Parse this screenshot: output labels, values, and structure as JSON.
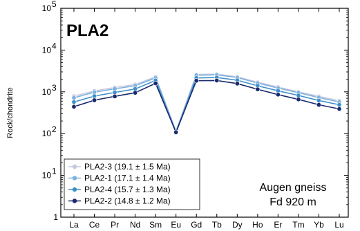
{
  "chart_data": {
    "type": "line",
    "sample_title": "PLA2",
    "ylabel": "Rock/chondrite",
    "yscale": "log",
    "ylim": [
      1,
      100000
    ],
    "y_ticks": [
      {
        "value": 1,
        "base": "1",
        "exp": ""
      },
      {
        "value": 10,
        "base": "10",
        "exp": "1"
      },
      {
        "value": 100,
        "base": "10",
        "exp": "2"
      },
      {
        "value": 1000,
        "base": "10",
        "exp": "3"
      },
      {
        "value": 10000,
        "base": "10",
        "exp": "4"
      },
      {
        "value": 100000,
        "base": "10",
        "exp": "5"
      }
    ],
    "categories": [
      "La",
      "Ce",
      "Pr",
      "Nd",
      "Sm",
      "Eu",
      "Gd",
      "Tb",
      "Dy",
      "Ho",
      "Er",
      "Tm",
      "Yb",
      "Lu"
    ],
    "series": [
      {
        "name": "PLA2-3 (19.1 ± 1.5 Ma)",
        "color": "#c4c8e0",
        "values": [
          790,
          1050,
          1270,
          1500,
          2300,
          115,
          2600,
          2650,
          2300,
          1700,
          1300,
          1000,
          780,
          610
        ]
      },
      {
        "name": "PLA2-1 (17.1 ± 1.4 Ma)",
        "color": "#7fb1de",
        "values": [
          720,
          980,
          1180,
          1400,
          2150,
          112,
          2500,
          2550,
          2200,
          1620,
          1230,
          950,
          730,
          570
        ]
      },
      {
        "name": "PLA2-4 (15.7 ± 1.3 Ma)",
        "color": "#3d8fc9",
        "values": [
          570,
          790,
          970,
          1170,
          1880,
          105,
          2150,
          2200,
          1900,
          1400,
          1060,
          820,
          620,
          490
        ]
      },
      {
        "name": "PLA2-2 (14.8 ± 1.2 Ma)",
        "color": "#1a2a6e",
        "values": [
          440,
          630,
          780,
          950,
          1600,
          108,
          1850,
          1870,
          1580,
          1150,
          860,
          660,
          490,
          390
        ]
      }
    ],
    "annotation_line1": "Augen gneiss",
    "annotation_line2": "Fd 920 m",
    "legend_position": "bottom-left",
    "grid": false
  }
}
